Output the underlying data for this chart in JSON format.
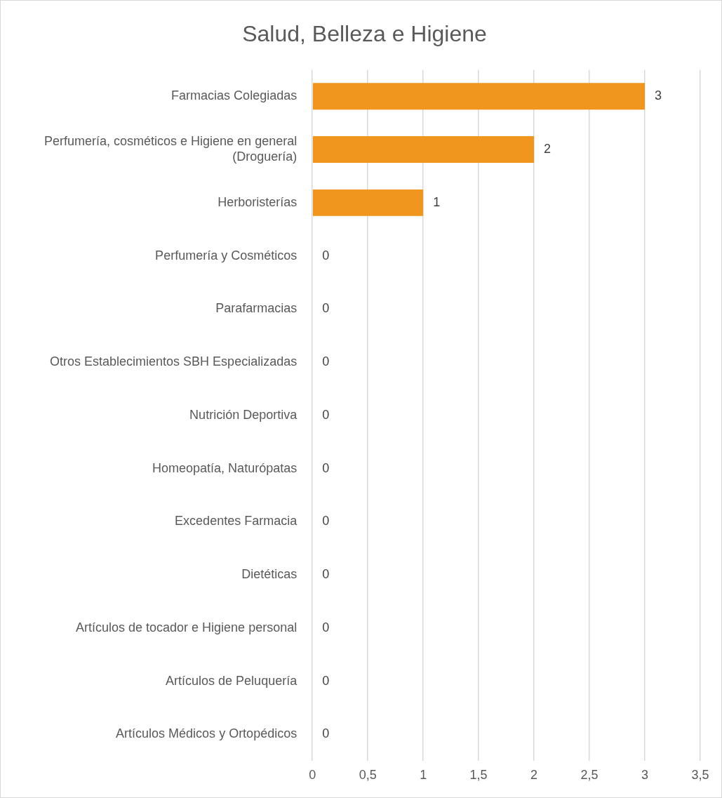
{
  "chart_data": {
    "type": "bar",
    "orientation": "horizontal",
    "title": "Salud, Belleza e Higiene",
    "categories": [
      "Farmacias Colegiadas",
      "Perfumería, cosméticos e Higiene en general (Droguería)",
      "Herboristerías",
      "Perfumería y Cosméticos",
      "Parafarmacias",
      "Otros Establecimientos SBH Especializadas",
      "Nutrición Deportiva",
      "Homeopatía, Naturópatas",
      "Excedentes Farmacia",
      "Dietéticas",
      "Artículos de tocador e Higiene personal",
      "Artículos de Peluquería",
      "Artículos Médicos y Ortopédicos"
    ],
    "values": [
      3,
      2,
      1,
      0,
      0,
      0,
      0,
      0,
      0,
      0,
      0,
      0,
      0
    ],
    "color": "#f0961e",
    "xlim": [
      0,
      3.5
    ],
    "xticks": [
      0,
      {
        "value": 0.5,
        "label": "0,5"
      },
      1,
      {
        "value": 1.5,
        "label": "1,5"
      },
      2,
      {
        "value": 2.5,
        "label": "2,5"
      },
      3,
      {
        "value": 3.5,
        "label": "3,5"
      }
    ],
    "grid": "x",
    "data_labels": true,
    "legend": false
  }
}
